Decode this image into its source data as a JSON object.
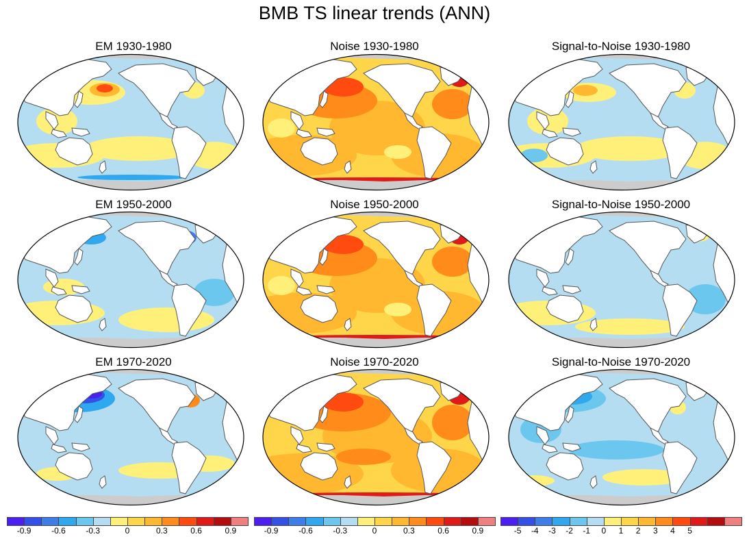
{
  "title": "BMB TS linear trends (ANN)",
  "colors": {
    "scale": [
      "#4b1ff0",
      "#3550e6",
      "#3f7ee8",
      "#2fa8ef",
      "#6cc7ef",
      "#b5ddf2",
      "#fff07a",
      "#ffd54a",
      "#ffb830",
      "#ff8c1a",
      "#ff4a10",
      "#e01a1a",
      "#b50d0d",
      "#f08080"
    ],
    "land": "#ffffff",
    "ice": "#cccccc",
    "coast": "#555555"
  },
  "panels": [
    {
      "title": "EM 1930-1980",
      "pattern": "em1"
    },
    {
      "title": "Noise 1930-1980",
      "pattern": "noise"
    },
    {
      "title": "Signal-to-Noise 1930-1980",
      "pattern": "sn1"
    },
    {
      "title": "EM 1950-2000",
      "pattern": "em2"
    },
    {
      "title": "Noise 1950-2000",
      "pattern": "noise"
    },
    {
      "title": "Signal-to-Noise 1950-2000",
      "pattern": "sn2"
    },
    {
      "title": "EM 1970-2020",
      "pattern": "em3"
    },
    {
      "title": "Noise 1970-2020",
      "pattern": "noise3"
    },
    {
      "title": "Signal-to-Noise 1970-2020",
      "pattern": "sn3"
    }
  ],
  "colorbars": [
    {
      "name": "em",
      "labels": [
        "-0.9",
        "-0.6",
        "-0.3",
        "0",
        "0.3",
        "0.6",
        "0.9"
      ],
      "label_positions": [
        1,
        3,
        5,
        7,
        9,
        11,
        13
      ]
    },
    {
      "name": "noise",
      "labels": [
        "-0.9",
        "-0.6",
        "-0.3",
        "0",
        "0.3",
        "0.6",
        "0.9"
      ],
      "label_positions": [
        1,
        3,
        5,
        7,
        9,
        11,
        13
      ]
    },
    {
      "name": "sn",
      "labels": [
        "-5",
        "-4",
        "-3",
        "-2",
        "-1",
        "0",
        "1",
        "2",
        "3",
        "4",
        "5"
      ],
      "label_positions": [
        1,
        2,
        3,
        4,
        5,
        6,
        7,
        8,
        9,
        10,
        11
      ]
    }
  ]
}
